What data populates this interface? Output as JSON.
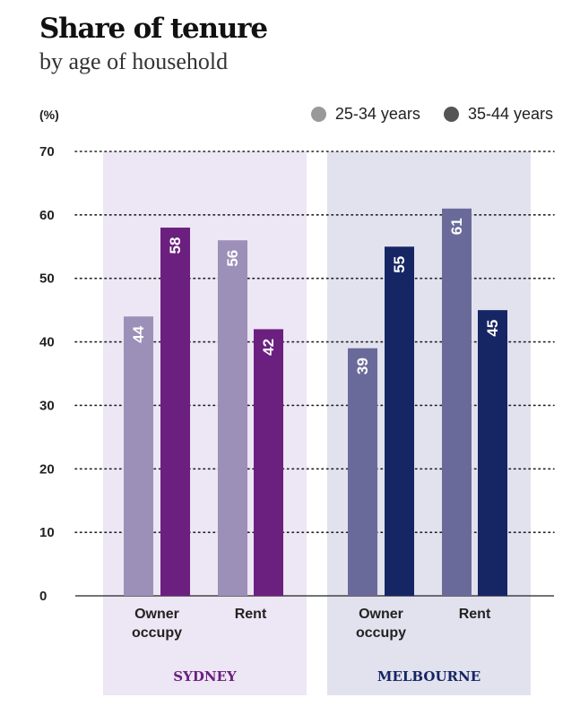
{
  "title": "Share of tenure",
  "subtitle": "by age of household",
  "unit_label": "(%)",
  "colors": {
    "sydney_panel": "#ede6f4",
    "melbourne_panel": "#e2e2ef",
    "sydney_25_34": "#9c8fb8",
    "sydney_35_44": "#6b2080",
    "melbourne_25_34": "#6a6a9a",
    "melbourne_35_44": "#162664",
    "legend_25_34": "#999999",
    "legend_35_44": "#555555",
    "sydney_label": "#6b2080",
    "melbourne_label": "#162664"
  },
  "legend": [
    {
      "label": "25-34 years",
      "color": "#999999"
    },
    {
      "label": "35-44 years",
      "color": "#555555"
    }
  ],
  "chart_data": {
    "type": "bar",
    "ylim": [
      0,
      70
    ],
    "yticks": [
      0,
      10,
      20,
      30,
      40,
      50,
      60,
      70
    ],
    "grid": "dotted horizontal",
    "legend_position": "top-right",
    "series_names": [
      "25-34 years",
      "35-44 years"
    ],
    "panels": [
      {
        "name": "SYDNEY",
        "categories": [
          {
            "label": [
              "Owner",
              "occupy"
            ],
            "values": [
              44,
              58
            ]
          },
          {
            "label": [
              "Rent"
            ],
            "values": [
              56,
              42
            ]
          }
        ]
      },
      {
        "name": "MELBOURNE",
        "categories": [
          {
            "label": [
              "Owner",
              "occupy"
            ],
            "values": [
              39,
              55
            ]
          },
          {
            "label": [
              "Rent"
            ],
            "values": [
              61,
              45
            ]
          }
        ]
      }
    ]
  }
}
